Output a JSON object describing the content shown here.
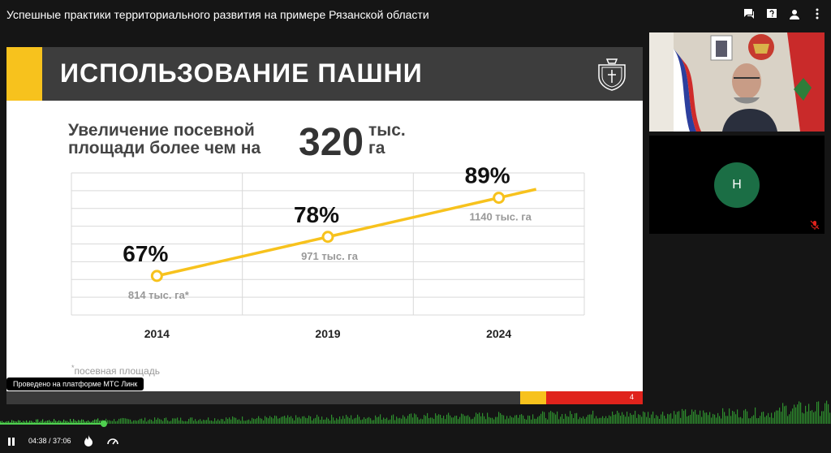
{
  "window": {
    "title": "Успешные практики территориального развития на примере Рязанской области"
  },
  "toolbar": {
    "icons": [
      "chat-icon",
      "question-icon",
      "person-icon",
      "more-vertical-icon"
    ]
  },
  "slide": {
    "title": "ИСПОЛЬЗОВАНИЕ ПАШНИ",
    "lead_line1": "Увеличение посевной",
    "lead_line2": "площади более чем на",
    "big_number": "320",
    "unit_line1": "тыс.",
    "unit_line2": "га",
    "footnote_mark": "*",
    "footnote": "посевная площадь",
    "page_number": "4"
  },
  "chart_data": {
    "type": "line",
    "categories": [
      "2014",
      "2019",
      "2024"
    ],
    "values": [
      67,
      78,
      89
    ],
    "value_labels": [
      "67%",
      "78%",
      "89%"
    ],
    "sub_labels": [
      "814 тыс. га*",
      "971 тыс. га",
      "1140 тыс. га"
    ],
    "series_color": "#f7c21d",
    "grid": true
  },
  "tooltip": {
    "text": "Проведено на платформе МТС Линк"
  },
  "participant": {
    "initial": "Н"
  },
  "player": {
    "time": "04:38 / 37:06",
    "progress": 0.125
  },
  "colors": {
    "accent": "#f7c21d",
    "danger": "#e0231c",
    "avatar": "#1b6e45"
  }
}
